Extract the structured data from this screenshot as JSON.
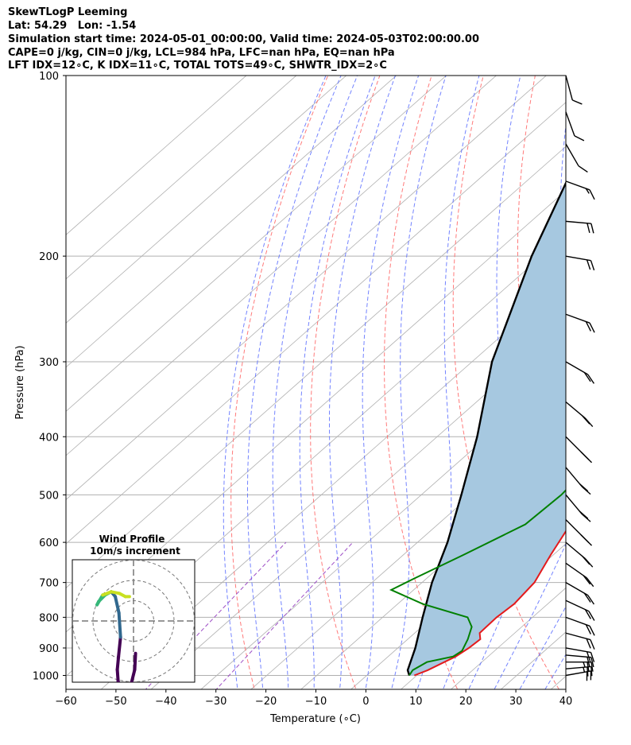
{
  "header": {
    "line1": "SkewTLogP Leeming",
    "line2": "Lat: 54.29   Lon: -1.54",
    "line3": "Simulation start time: 2024-05-01_00:00:00, Valid time: 2024-05-03T02:00:00.00",
    "line4": "CAPE=0 j/kg, CIN=0 j/kg, LCL=984 hPa, LFC=nan hPa, EQ=nan hPa",
    "line5": "LFT IDX=12∘C, K IDX=11∘C, TOTAL TOTS=49∘C, SHWTR_IDX=2∘C"
  },
  "colors": {
    "temperature": "#e41a1c",
    "dewpoint": "#008000",
    "parcel": "#000000",
    "shade": "#a6c8e0",
    "dry_adiabat": "#ff6b6b",
    "moist_adiabat": "#5a6dff",
    "mixing_ratio": "#9e4fc6",
    "isotherm": "#b0b0b0"
  },
  "chart_data": {
    "type": "line",
    "title": "",
    "xlabel": "Temperature (∘C)",
    "ylabel": "Pressure (hPa)",
    "xlim": [
      -60,
      40
    ],
    "ylim": [
      1050,
      100
    ],
    "yscale": "log",
    "xticks": [
      "−60",
      "−50",
      "−40",
      "−30",
      "−20",
      "−10",
      "0",
      "10",
      "20",
      "30",
      "40"
    ],
    "yticks": [
      "100",
      "200",
      "300",
      "400",
      "500",
      "600",
      "700",
      "800",
      "900",
      "1000"
    ],
    "grid": true,
    "series": [
      {
        "role": "temperature",
        "points": [
          [
            9.5,
            1000
          ],
          [
            11,
            980
          ],
          [
            13.5,
            930
          ],
          [
            14.2,
            900
          ],
          [
            14.5,
            870
          ],
          [
            13,
            850
          ],
          [
            12.8,
            800
          ],
          [
            13.3,
            760
          ],
          [
            12.5,
            700
          ],
          [
            9.5,
            630
          ],
          [
            6.5,
            560
          ],
          [
            4.5,
            500
          ],
          [
            2,
            440
          ],
          [
            -1.5,
            390
          ],
          [
            -4.5,
            350
          ],
          [
            -10,
            310
          ],
          [
            -12,
            290
          ],
          [
            -13,
            260
          ],
          [
            -13.5,
            240
          ],
          [
            -12.5,
            225
          ],
          [
            -11.5,
            210
          ],
          [
            -11,
            200
          ],
          [
            -10.5,
            190
          ],
          [
            -12,
            175
          ],
          [
            -11,
            170
          ],
          [
            -13,
            155
          ],
          [
            -15,
            145
          ],
          [
            -16.5,
            135
          ],
          [
            -21,
            120
          ],
          [
            -22.5,
            113
          ],
          [
            -24,
            108
          ],
          [
            -24.5,
            100
          ]
        ]
      },
      {
        "role": "dewpoint",
        "points": [
          [
            8.5,
            1000
          ],
          [
            8,
            980
          ],
          [
            9,
            950
          ],
          [
            13,
            930
          ],
          [
            13.5,
            910
          ],
          [
            12,
            870
          ],
          [
            10,
            830
          ],
          [
            7,
            800
          ],
          [
            -5,
            760
          ],
          [
            -14.5,
            720
          ],
          [
            -12.5,
            690
          ],
          [
            -8,
            630
          ],
          [
            -2.5,
            560
          ],
          [
            -2,
            500
          ],
          [
            -3,
            440
          ],
          [
            -8,
            400
          ],
          [
            -15,
            370
          ],
          [
            -19,
            340
          ],
          [
            -22,
            320
          ],
          [
            -25,
            300
          ],
          [
            -28.5,
            280
          ],
          [
            -30,
            240
          ],
          [
            -30,
            200
          ],
          [
            -31,
            190
          ],
          [
            -32,
            180
          ],
          [
            -34.5,
            170
          ],
          [
            -36,
            165
          ],
          [
            -37,
            158
          ],
          [
            -38.5,
            148
          ],
          [
            -41.5,
            137
          ],
          [
            -44,
            128
          ],
          [
            -49.5,
            110
          ],
          [
            -53,
            100
          ]
        ]
      },
      {
        "role": "parcel",
        "points": [
          [
            8.5,
            1000
          ],
          [
            7,
            980
          ],
          [
            3.5,
            900
          ],
          [
            -2,
            800
          ],
          [
            -8,
            700
          ],
          [
            -14,
            600
          ],
          [
            -22,
            500
          ],
          [
            -32,
            400
          ],
          [
            -46,
            300
          ],
          [
            -62,
            200
          ],
          [
            -86,
            100
          ]
        ]
      }
    ],
    "wind_barbs": [
      {
        "p": 1000,
        "speed": 20,
        "dir": 260
      },
      {
        "p": 975,
        "speed": 25,
        "dir": 265
      },
      {
        "p": 950,
        "speed": 25,
        "dir": 270
      },
      {
        "p": 925,
        "speed": 20,
        "dir": 275
      },
      {
        "p": 900,
        "speed": 20,
        "dir": 280
      },
      {
        "p": 850,
        "speed": 20,
        "dir": 285
      },
      {
        "p": 800,
        "speed": 20,
        "dir": 290
      },
      {
        "p": 750,
        "speed": 20,
        "dir": 295
      },
      {
        "p": 700,
        "speed": 20,
        "dir": 300
      },
      {
        "p": 650,
        "speed": 20,
        "dir": 305
      },
      {
        "p": 600,
        "speed": 20,
        "dir": 310
      },
      {
        "p": 550,
        "speed": 20,
        "dir": 315
      },
      {
        "p": 500,
        "speed": 20,
        "dir": 320
      },
      {
        "p": 450,
        "speed": 20,
        "dir": 320
      },
      {
        "p": 400,
        "speed": 20,
        "dir": 315
      },
      {
        "p": 350,
        "speed": 20,
        "dir": 310
      },
      {
        "p": 300,
        "speed": 20,
        "dir": 300
      },
      {
        "p": 250,
        "speed": 20,
        "dir": 290
      },
      {
        "p": 200,
        "speed": 20,
        "dir": 280
      },
      {
        "p": 175,
        "speed": 20,
        "dir": 275
      },
      {
        "p": 150,
        "speed": 15,
        "dir": 290
      },
      {
        "p": 130,
        "speed": 10,
        "dir": 330
      },
      {
        "p": 115,
        "speed": 10,
        "dir": 340
      },
      {
        "p": 100,
        "speed": 10,
        "dir": 345
      }
    ],
    "hodograph": {
      "title": "Wind Profile",
      "subtitle": "10m/s increment",
      "u": [
        0.5,
        0.3,
        -0.5,
        -1.5,
        -2.5,
        -3.3,
        -3.8,
        -4.0,
        -3.7,
        -3.2,
        -3.6,
        -4.5,
        -5.5,
        -7.0,
        -8.6,
        -9.0,
        -7.6,
        -5.5,
        -3.5,
        -2.0,
        -1.0
      ],
      "v": [
        -2.0,
        -3.0,
        -3.8,
        -4.3,
        -4.5,
        -4.2,
        -3.7,
        -3.0,
        -2.2,
        -1.0,
        0.5,
        1.5,
        1.8,
        1.6,
        1.2,
        1.0,
        1.6,
        1.8,
        1.7,
        1.5,
        1.5
      ]
    }
  }
}
